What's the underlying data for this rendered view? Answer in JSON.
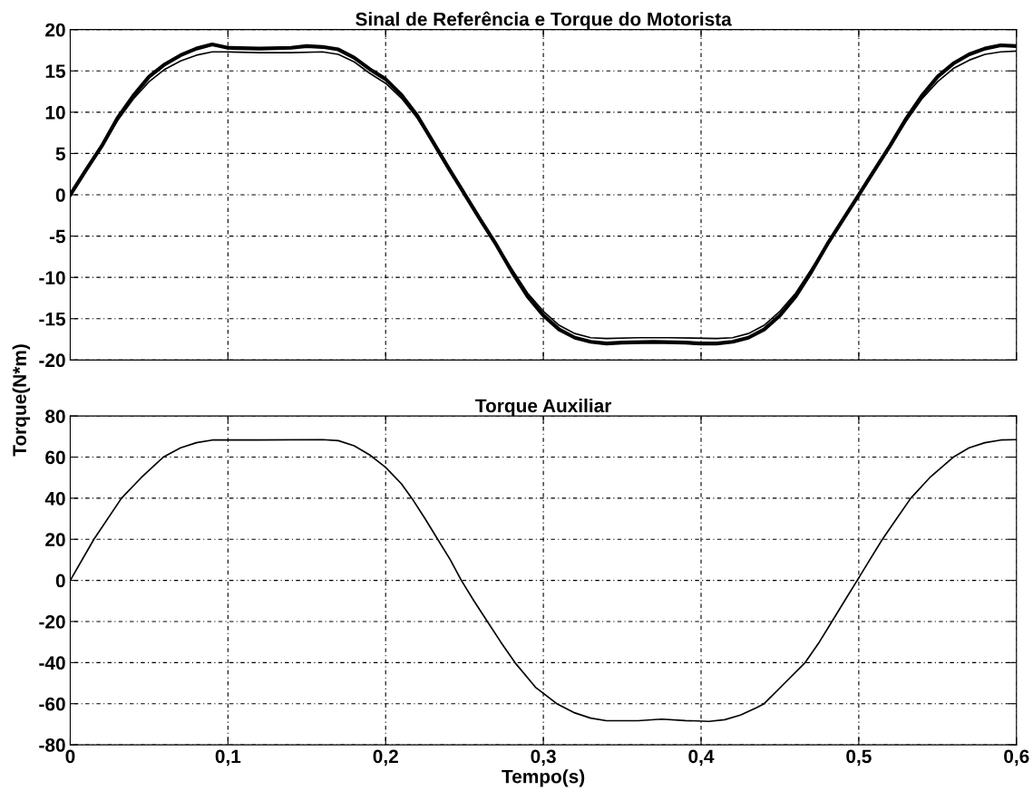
{
  "chart_data": [
    {
      "type": "line",
      "title": "Sinal de Referência e Torque do Motorista",
      "ylabel": "Torque(N*m)",
      "xlim": [
        0,
        0.6
      ],
      "ylim": [
        -20,
        20
      ],
      "xticks": [
        0,
        0.1,
        0.2,
        0.3,
        0.4,
        0.5,
        0.6
      ],
      "yticks": [
        -20,
        -15,
        -10,
        -5,
        0,
        5,
        10,
        15,
        20
      ],
      "tick_labels": "y",
      "grid": true,
      "line_style": "solid",
      "marker": "none",
      "series": [
        {
          "color": "#000000",
          "x": [
            0,
            0.01,
            0.02,
            0.03,
            0.04,
            0.05,
            0.06,
            0.07,
            0.08,
            0.09,
            0.1,
            0.12,
            0.14,
            0.15,
            0.16,
            0.17,
            0.18,
            0.19,
            0.2,
            0.21,
            0.22,
            0.23,
            0.24,
            0.25,
            0.26,
            0.27,
            0.28,
            0.29,
            0.3,
            0.31,
            0.32,
            0.33,
            0.34,
            0.35,
            0.37,
            0.39,
            0.4,
            0.41,
            0.42,
            0.43,
            0.44,
            0.45,
            0.46,
            0.47,
            0.48,
            0.49,
            0.5,
            0.51,
            0.52,
            0.53,
            0.54,
            0.55,
            0.56,
            0.57,
            0.58,
            0.59,
            0.6
          ],
          "values": [
            0,
            3,
            5.9,
            9.3,
            12,
            14.3,
            15.8,
            16.9,
            17.7,
            18.2,
            17.8,
            17.7,
            17.8,
            18,
            17.9,
            17.6,
            16.6,
            15.2,
            14,
            12.1,
            9.6,
            6.4,
            3.2,
            0.1,
            -3,
            -6,
            -9.3,
            -12.3,
            -14.6,
            -16.3,
            -17.3,
            -17.8,
            -18,
            -17.9,
            -17.8,
            -17.9,
            -18,
            -18,
            -17.8,
            -17.3,
            -16.3,
            -14.6,
            -12.3,
            -9.3,
            -6,
            -3,
            0,
            3,
            6,
            9.2,
            12,
            14.3,
            15.9,
            17,
            17.7,
            18.1,
            18
          ]
        },
        {
          "color": "#000000",
          "x": [
            0,
            0.01,
            0.02,
            0.03,
            0.04,
            0.05,
            0.06,
            0.07,
            0.08,
            0.09,
            0.1,
            0.12,
            0.14,
            0.16,
            0.17,
            0.18,
            0.19,
            0.2,
            0.21,
            0.22,
            0.23,
            0.24,
            0.25,
            0.26,
            0.27,
            0.28,
            0.29,
            0.3,
            0.31,
            0.32,
            0.33,
            0.34,
            0.36,
            0.38,
            0.41,
            0.42,
            0.43,
            0.44,
            0.45,
            0.46,
            0.47,
            0.48,
            0.49,
            0.5,
            0.51,
            0.52,
            0.53,
            0.54,
            0.55,
            0.56,
            0.57,
            0.58,
            0.59,
            0.6
          ],
          "values": [
            0,
            2.9,
            5.8,
            9,
            11.6,
            13.7,
            15.2,
            16.2,
            16.9,
            17.3,
            17.3,
            17.2,
            17.2,
            17.3,
            17,
            16.1,
            14.7,
            13.5,
            11.7,
            9.3,
            6.3,
            3.2,
            0.1,
            -3,
            -6,
            -9,
            -11.9,
            -14.1,
            -15.8,
            -16.8,
            -17.3,
            -17.4,
            -17.3,
            -17.3,
            -17.4,
            -17.3,
            -16.8,
            -15.8,
            -14.1,
            -11.9,
            -9,
            -6,
            -3,
            0,
            2.9,
            5.9,
            8.9,
            11.6,
            13.7,
            15.3,
            16.3,
            17,
            17.3,
            17.4
          ]
        }
      ]
    },
    {
      "type": "line",
      "title": "Torque Auxiliar",
      "xlabel": "Tempo(s)",
      "xlim": [
        0,
        0.6
      ],
      "ylim": [
        -80,
        80
      ],
      "xticks": [
        0,
        {
          "value": 0.1,
          "label": "0,1"
        },
        {
          "value": 0.2,
          "label": "0,2"
        },
        {
          "value": 0.3,
          "label": "0,3"
        },
        {
          "value": 0.4,
          "label": "0,4"
        },
        {
          "value": 0.5,
          "label": "0,5"
        },
        {
          "value": 0.6,
          "label": "0,6"
        }
      ],
      "yticks": [
        -80,
        -60,
        -40,
        -20,
        0,
        20,
        40,
        60,
        80
      ],
      "grid": true,
      "line_style": "solid",
      "marker": "none",
      "series": [
        {
          "color": "#000000",
          "x": [
            0,
            0.015,
            0.0325,
            0.045,
            0.059,
            0.07,
            0.08,
            0.09,
            0.12,
            0.16,
            0.17,
            0.18,
            0.19,
            0.2,
            0.21,
            0.2166,
            0.225,
            0.233,
            0.241,
            0.248,
            0.256,
            0.2645,
            0.273,
            0.282,
            0.295,
            0.3085,
            0.32,
            0.33,
            0.34,
            0.36,
            0.375,
            0.39,
            0.405,
            0.415,
            0.425,
            0.435,
            0.44,
            0.453,
            0.466,
            0.475,
            0.483,
            0.491,
            0.499,
            0.507,
            0.515,
            0.524,
            0.533,
            0.545,
            0.56,
            0.57,
            0.58,
            0.59,
            0.6
          ],
          "values": [
            0,
            20,
            40,
            50,
            60,
            64.5,
            67,
            68.3,
            68.3,
            68.5,
            68,
            65.5,
            61,
            55,
            47,
            40,
            30,
            20,
            10,
            0,
            -10,
            -20,
            -30,
            -40,
            -52,
            -60,
            -64.5,
            -67,
            -68.3,
            -68.3,
            -67.5,
            -68.2,
            -68.6,
            -67.8,
            -65.5,
            -62,
            -60,
            -50,
            -40,
            -30,
            -20,
            -10,
            0,
            10,
            20,
            30,
            40,
            50,
            60,
            64.5,
            67,
            68.3,
            68.5
          ]
        }
      ]
    }
  ]
}
